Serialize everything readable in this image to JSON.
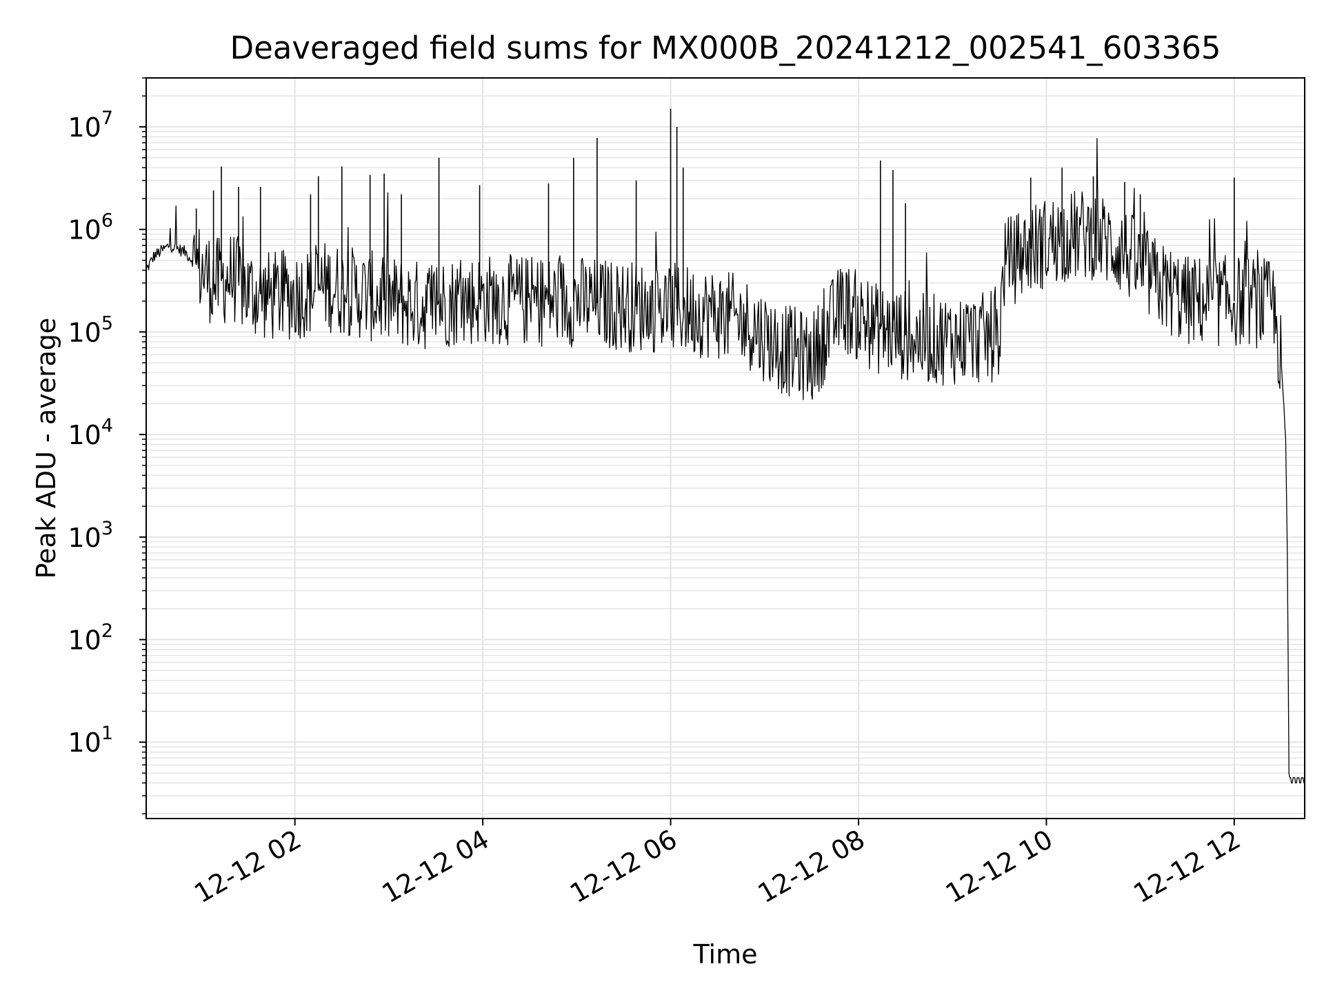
{
  "chart_data": {
    "type": "line",
    "title": "Deaveraged field sums for MX000B_20241212_002541_603365",
    "xlabel": "Time",
    "ylabel": "Peak ADU - average",
    "x_scale": "time",
    "y_scale": "log",
    "xlim": [
      "2024-12-12 00:25",
      "2024-12-12 12:45"
    ],
    "ylim": [
      1.8,
      30000000
    ],
    "grid": true,
    "x_ticks": [
      "12-12 02",
      "12-12 04",
      "12-12 06",
      "12-12 08",
      "12-12 10",
      "12-12 12"
    ],
    "x_tick_times": [
      "2024-12-12 02:00",
      "2024-12-12 04:00",
      "2024-12-12 06:00",
      "2024-12-12 08:00",
      "2024-12-12 10:00",
      "2024-12-12 12:00"
    ],
    "y_ticks": [
      {
        "base": "10",
        "exp": "1",
        "value": 10
      },
      {
        "base": "10",
        "exp": "2",
        "value": 100
      },
      {
        "base": "10",
        "exp": "3",
        "value": 1000
      },
      {
        "base": "10",
        "exp": "4",
        "value": 10000
      },
      {
        "base": "10",
        "exp": "5",
        "value": 100000
      },
      {
        "base": "10",
        "exp": "6",
        "value": 1000000
      },
      {
        "base": "10",
        "exp": "7",
        "value": 10000000
      }
    ],
    "series": [
      {
        "color": "#000000",
        "points": [
          [
            "2024-12-12 00:25",
            400000
          ],
          [
            "2024-12-12 00:30",
            550000
          ],
          [
            "2024-12-12 00:40",
            700000
          ],
          [
            "2024-12-12 00:50",
            600000
          ],
          [
            "2024-12-12 01:00",
            400000
          ],
          [
            "2024-12-12 01:10",
            300000
          ],
          [
            "2024-12-12 01:20",
            350000
          ],
          [
            "2024-12-12 01:30",
            250000
          ],
          [
            "2024-12-12 01:45",
            220000
          ],
          [
            "2024-12-12 02:00",
            230000
          ],
          [
            "2024-12-12 02:20",
            280000
          ],
          [
            "2024-12-12 02:40",
            240000
          ],
          [
            "2024-12-12 03:00",
            200000
          ],
          [
            "2024-12-12 03:20",
            180000
          ],
          [
            "2024-12-12 03:40",
            200000
          ],
          [
            "2024-12-12 04:00",
            210000
          ],
          [
            "2024-12-12 04:30",
            200000
          ],
          [
            "2024-12-12 05:00",
            200000
          ],
          [
            "2024-12-12 05:30",
            180000
          ],
          [
            "2024-12-12 06:00",
            170000
          ],
          [
            "2024-12-12 06:30",
            150000
          ],
          [
            "2024-12-12 06:50",
            120000
          ],
          [
            "2024-12-12 07:10",
            70000
          ],
          [
            "2024-12-12 07:30",
            55000
          ],
          [
            "2024-12-12 07:50",
            180000
          ],
          [
            "2024-12-12 08:10",
            110000
          ],
          [
            "2024-12-12 08:40",
            85000
          ],
          [
            "2024-12-12 09:10",
            85000
          ],
          [
            "2024-12-12 09:30",
            90000
          ],
          [
            "2024-12-12 09:33",
            450000
          ],
          [
            "2024-12-12 09:50",
            650000
          ],
          [
            "2024-12-12 10:10",
            850000
          ],
          [
            "2024-12-12 10:30",
            900000
          ],
          [
            "2024-12-12 10:50",
            600000
          ],
          [
            "2024-12-12 11:10",
            300000
          ],
          [
            "2024-12-12 11:30",
            200000
          ],
          [
            "2024-12-12 11:50",
            200000
          ],
          [
            "2024-12-12 12:10",
            200000
          ],
          [
            "2024-12-12 12:25",
            180000
          ],
          [
            "2024-12-12 12:30",
            50000
          ],
          [
            "2024-12-12 12:33",
            8000
          ],
          [
            "2024-12-12 12:34",
            500
          ],
          [
            "2024-12-12 12:35",
            4
          ],
          [
            "2024-12-12 12:45",
            4
          ]
        ],
        "spikes": [
          [
            "2024-12-12 00:57",
            1600000
          ],
          [
            "2024-12-12 01:08",
            2400000
          ],
          [
            "2024-12-12 01:13",
            4100000
          ],
          [
            "2024-12-12 01:24",
            2600000
          ],
          [
            "2024-12-12 01:38",
            2600000
          ],
          [
            "2024-12-12 02:10",
            2200000
          ],
          [
            "2024-12-12 02:15",
            3300000
          ],
          [
            "2024-12-12 02:30",
            4100000
          ],
          [
            "2024-12-12 02:48",
            3400000
          ],
          [
            "2024-12-12 02:57",
            3500000
          ],
          [
            "2024-12-12 03:08",
            2200000
          ],
          [
            "2024-12-12 03:32",
            5000000
          ],
          [
            "2024-12-12 03:58",
            2700000
          ],
          [
            "2024-12-12 04:42",
            2800000
          ],
          [
            "2024-12-12 04:58",
            5000000
          ],
          [
            "2024-12-12 05:13",
            7800000
          ],
          [
            "2024-12-12 05:38",
            3000000
          ],
          [
            "2024-12-12 06:00",
            15000000
          ],
          [
            "2024-12-12 06:04",
            10000000
          ],
          [
            "2024-12-12 06:08",
            4000000
          ],
          [
            "2024-12-12 08:14",
            4700000
          ],
          [
            "2024-12-12 08:22",
            3800000
          ],
          [
            "2024-12-12 08:30",
            1800000
          ],
          [
            "2024-12-12 09:50",
            3200000
          ],
          [
            "2024-12-12 10:10",
            4000000
          ],
          [
            "2024-12-12 10:30",
            3300000
          ],
          [
            "2024-12-12 10:50",
            2900000
          ],
          [
            "2024-12-12 11:00",
            2200000
          ],
          [
            "2024-12-12 12:00",
            3200000
          ]
        ]
      }
    ]
  }
}
